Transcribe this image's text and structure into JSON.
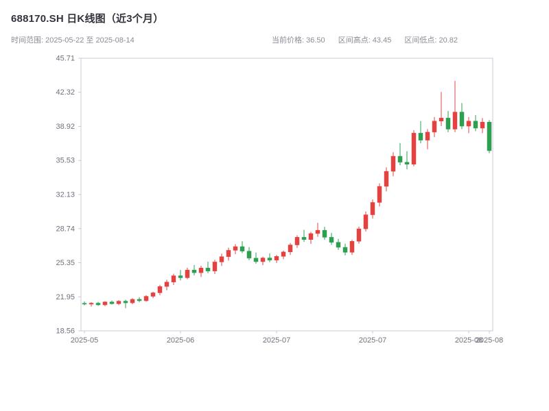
{
  "header": {
    "title": "688170.SH 日K线图（近3个月）",
    "subtitle_left": "时间范围: 2025-05-22 至 2025-08-14",
    "stats": {
      "current": "当前价格: 36.50",
      "high": "区间高点: 43.45",
      "low": "区间低点: 20.82"
    }
  },
  "chart_data": {
    "type": "candlestick",
    "symbol": "688170.SH",
    "title": "688170.SH 日K线图（近3个月）",
    "date_range": {
      "start": "2025-05-22",
      "end": "2025-08-14"
    },
    "current_price": 36.5,
    "range_high": 43.45,
    "range_low": 20.82,
    "ylim": [
      18.56,
      45.71
    ],
    "yticks": [
      18.56,
      21.95,
      25.35,
      28.74,
      32.13,
      35.53,
      38.92,
      42.32,
      45.71
    ],
    "xticks": [
      {
        "index": 0,
        "label": "2025-05"
      },
      {
        "index": 14,
        "label": "2025-06"
      },
      {
        "index": 28,
        "label": "2025-07"
      },
      {
        "index": 42,
        "label": "2025-07"
      },
      {
        "index": 56,
        "label": "2025-08"
      },
      {
        "index": 59,
        "label": "2025-08"
      }
    ],
    "grid": false,
    "legend": false,
    "colors": {
      "up": "#e14343",
      "down": "#2e9e50",
      "border": "#c9c9d4",
      "tick_label": "#70707c",
      "title_text": "#32333d",
      "subtitle_text": "#8b8b96"
    },
    "candles": [
      {
        "d": "2025-05-22",
        "o": 21.3,
        "h": 21.48,
        "l": 21.1,
        "c": 21.22
      },
      {
        "d": "2025-05-23",
        "o": 21.22,
        "h": 21.42,
        "l": 20.98,
        "c": 21.32
      },
      {
        "d": "2025-05-26",
        "o": 21.32,
        "h": 21.45,
        "l": 21.05,
        "c": 21.15
      },
      {
        "d": "2025-05-27",
        "o": 21.15,
        "h": 21.52,
        "l": 21.02,
        "c": 21.44
      },
      {
        "d": "2025-05-28",
        "o": 21.44,
        "h": 21.58,
        "l": 21.18,
        "c": 21.26
      },
      {
        "d": "2025-05-29",
        "o": 21.26,
        "h": 21.62,
        "l": 21.12,
        "c": 21.52
      },
      {
        "d": "2025-05-30",
        "o": 21.52,
        "h": 21.66,
        "l": 20.82,
        "c": 21.35
      },
      {
        "d": "2025-06-03",
        "o": 21.35,
        "h": 21.82,
        "l": 21.22,
        "c": 21.7
      },
      {
        "d": "2025-06-04",
        "o": 21.7,
        "h": 21.92,
        "l": 21.42,
        "c": 21.56
      },
      {
        "d": "2025-06-05",
        "o": 21.56,
        "h": 22.12,
        "l": 21.46,
        "c": 22.0
      },
      {
        "d": "2025-06-06",
        "o": 22.0,
        "h": 22.46,
        "l": 21.82,
        "c": 22.35
      },
      {
        "d": "2025-06-09",
        "o": 22.35,
        "h": 23.15,
        "l": 22.12,
        "c": 22.98
      },
      {
        "d": "2025-06-10",
        "o": 22.98,
        "h": 23.65,
        "l": 22.6,
        "c": 23.42
      },
      {
        "d": "2025-06-11",
        "o": 23.42,
        "h": 24.25,
        "l": 23.12,
        "c": 24.05
      },
      {
        "d": "2025-06-12",
        "o": 24.05,
        "h": 24.62,
        "l": 23.58,
        "c": 23.85
      },
      {
        "d": "2025-06-13",
        "o": 23.85,
        "h": 24.85,
        "l": 23.7,
        "c": 24.62
      },
      {
        "d": "2025-06-16",
        "o": 24.62,
        "h": 25.12,
        "l": 24.08,
        "c": 24.35
      },
      {
        "d": "2025-06-17",
        "o": 24.35,
        "h": 25.05,
        "l": 23.92,
        "c": 24.82
      },
      {
        "d": "2025-06-18",
        "o": 24.82,
        "h": 25.45,
        "l": 24.3,
        "c": 24.52
      },
      {
        "d": "2025-06-19",
        "o": 24.52,
        "h": 25.65,
        "l": 24.22,
        "c": 25.42
      },
      {
        "d": "2025-06-20",
        "o": 25.42,
        "h": 26.25,
        "l": 25.02,
        "c": 25.95
      },
      {
        "d": "2025-06-23",
        "o": 25.95,
        "h": 26.85,
        "l": 25.55,
        "c": 26.58
      },
      {
        "d": "2025-06-24",
        "o": 26.58,
        "h": 27.2,
        "l": 26.2,
        "c": 26.95
      },
      {
        "d": "2025-06-25",
        "o": 26.95,
        "h": 27.48,
        "l": 26.3,
        "c": 26.5
      },
      {
        "d": "2025-06-26",
        "o": 26.5,
        "h": 26.9,
        "l": 25.6,
        "c": 25.8
      },
      {
        "d": "2025-06-27",
        "o": 25.8,
        "h": 26.35,
        "l": 25.25,
        "c": 25.45
      },
      {
        "d": "2025-06-30",
        "o": 25.45,
        "h": 25.95,
        "l": 25.1,
        "c": 25.82
      },
      {
        "d": "2025-07-01",
        "o": 25.82,
        "h": 26.28,
        "l": 25.4,
        "c": 25.6
      },
      {
        "d": "2025-07-02",
        "o": 25.6,
        "h": 26.12,
        "l": 25.32,
        "c": 25.98
      },
      {
        "d": "2025-07-03",
        "o": 25.98,
        "h": 26.55,
        "l": 25.7,
        "c": 26.42
      },
      {
        "d": "2025-07-04",
        "o": 26.42,
        "h": 27.32,
        "l": 26.12,
        "c": 27.12
      },
      {
        "d": "2025-07-07",
        "o": 27.12,
        "h": 28.08,
        "l": 26.82,
        "c": 27.88
      },
      {
        "d": "2025-07-08",
        "o": 27.88,
        "h": 28.62,
        "l": 27.42,
        "c": 27.65
      },
      {
        "d": "2025-07-09",
        "o": 27.65,
        "h": 28.42,
        "l": 27.22,
        "c": 28.25
      },
      {
        "d": "2025-07-10",
        "o": 28.25,
        "h": 29.32,
        "l": 27.92,
        "c": 28.58
      },
      {
        "d": "2025-07-11",
        "o": 28.58,
        "h": 28.92,
        "l": 27.62,
        "c": 27.88
      },
      {
        "d": "2025-07-14",
        "o": 27.88,
        "h": 28.32,
        "l": 27.12,
        "c": 27.38
      },
      {
        "d": "2025-07-15",
        "o": 27.38,
        "h": 27.72,
        "l": 26.62,
        "c": 26.88
      },
      {
        "d": "2025-07-16",
        "o": 26.88,
        "h": 27.25,
        "l": 26.08,
        "c": 26.38
      },
      {
        "d": "2025-07-17",
        "o": 26.38,
        "h": 27.62,
        "l": 26.12,
        "c": 27.48
      },
      {
        "d": "2025-07-18",
        "o": 27.48,
        "h": 28.95,
        "l": 27.25,
        "c": 28.72
      },
      {
        "d": "2025-07-21",
        "o": 28.72,
        "h": 30.45,
        "l": 28.45,
        "c": 30.12
      },
      {
        "d": "2025-07-22",
        "o": 30.12,
        "h": 31.65,
        "l": 29.75,
        "c": 31.35
      },
      {
        "d": "2025-07-23",
        "o": 31.35,
        "h": 33.25,
        "l": 30.95,
        "c": 32.95
      },
      {
        "d": "2025-07-24",
        "o": 32.95,
        "h": 34.85,
        "l": 32.45,
        "c": 34.45
      },
      {
        "d": "2025-07-25",
        "o": 34.45,
        "h": 36.35,
        "l": 33.95,
        "c": 35.95
      },
      {
        "d": "2025-07-28",
        "o": 35.95,
        "h": 37.25,
        "l": 35.05,
        "c": 35.35
      },
      {
        "d": "2025-07-29",
        "o": 35.35,
        "h": 36.45,
        "l": 34.65,
        "c": 35.15
      },
      {
        "d": "2025-07-30",
        "o": 35.15,
        "h": 38.55,
        "l": 34.95,
        "c": 38.25
      },
      {
        "d": "2025-07-31",
        "o": 38.25,
        "h": 39.45,
        "l": 37.25,
        "c": 37.55
      },
      {
        "d": "2025-08-01",
        "o": 37.55,
        "h": 38.65,
        "l": 36.65,
        "c": 38.35
      },
      {
        "d": "2025-08-04",
        "o": 38.35,
        "h": 39.85,
        "l": 37.85,
        "c": 39.45
      },
      {
        "d": "2025-08-05",
        "o": 39.45,
        "h": 42.35,
        "l": 38.95,
        "c": 39.75
      },
      {
        "d": "2025-08-06",
        "o": 39.75,
        "h": 40.45,
        "l": 38.35,
        "c": 38.65
      },
      {
        "d": "2025-08-07",
        "o": 38.65,
        "h": 43.45,
        "l": 38.35,
        "c": 40.35
      },
      {
        "d": "2025-08-08",
        "o": 40.35,
        "h": 41.25,
        "l": 38.65,
        "c": 38.95
      },
      {
        "d": "2025-08-11",
        "o": 38.95,
        "h": 39.85,
        "l": 38.25,
        "c": 39.45
      },
      {
        "d": "2025-08-12",
        "o": 39.45,
        "h": 40.05,
        "l": 38.45,
        "c": 38.75
      },
      {
        "d": "2025-08-13",
        "o": 38.75,
        "h": 39.75,
        "l": 38.25,
        "c": 39.35
      },
      {
        "d": "2025-08-14",
        "o": 39.35,
        "h": 39.55,
        "l": 36.25,
        "c": 36.5
      }
    ]
  }
}
